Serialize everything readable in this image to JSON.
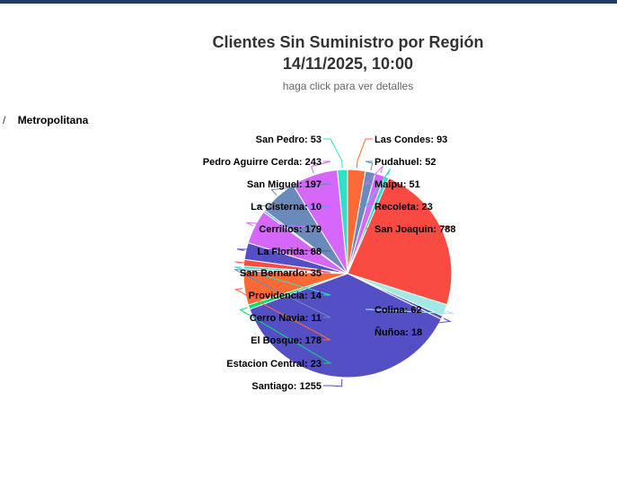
{
  "header": {
    "title_line1": "Clientes Sin Suministro por Región",
    "title_line2": "14/11/2025, 10:00",
    "subtitle": "haga click para ver detalles"
  },
  "breadcrumb": {
    "separator": "/",
    "current": "Metropolitana"
  },
  "chart_data": {
    "type": "pie",
    "title": "Clientes Sin Suministro por Región",
    "subtitle": "haga click para ver detalles",
    "data_label_format": "{name}: {value}",
    "slices": [
      {
        "name": "Las Condes",
        "value": 93,
        "color": "#fe6a35"
      },
      {
        "name": "Pudahuel",
        "value": 52,
        "color": "#6b8abc"
      },
      {
        "name": "Maipu",
        "value": 51,
        "color": "#d568fb"
      },
      {
        "name": "Recoleta",
        "value": 23,
        "color": "#2ee0ca"
      },
      {
        "name": "San Joaquin",
        "value": 788,
        "color": "#fa4b42"
      },
      {
        "name": "Colina",
        "value": 62,
        "color": "#a0e9e5"
      },
      {
        "name": "Ñuñoa",
        "value": 18,
        "color": "#544fc5"
      },
      {
        "name": "Santiago",
        "value": 1255,
        "color": "#544fc5"
      },
      {
        "name": "Estacion Central",
        "value": 23,
        "color": "#00e272"
      },
      {
        "name": "El Bosque",
        "value": 178,
        "color": "#fe6a35"
      },
      {
        "name": "Cerro Navia",
        "value": 11,
        "color": "#6b8abc"
      },
      {
        "name": "Providencia",
        "value": 14,
        "color": "#2ee0ca"
      },
      {
        "name": "San Bernardo",
        "value": 35,
        "color": "#fa4b42"
      },
      {
        "name": "La Florida",
        "value": 88,
        "color": "#544fc5"
      },
      {
        "name": "Cerrillos",
        "value": 179,
        "color": "#d568fb"
      },
      {
        "name": "La Cisterna",
        "value": 10,
        "color": "#2caffe"
      },
      {
        "name": "San Miguel",
        "value": 197,
        "color": "#6b8abc"
      },
      {
        "name": "Pedro Aguirre Cerda",
        "value": 243,
        "color": "#d568fb"
      },
      {
        "name": "San Pedro",
        "value": 53,
        "color": "#2ee0ca"
      }
    ]
  }
}
